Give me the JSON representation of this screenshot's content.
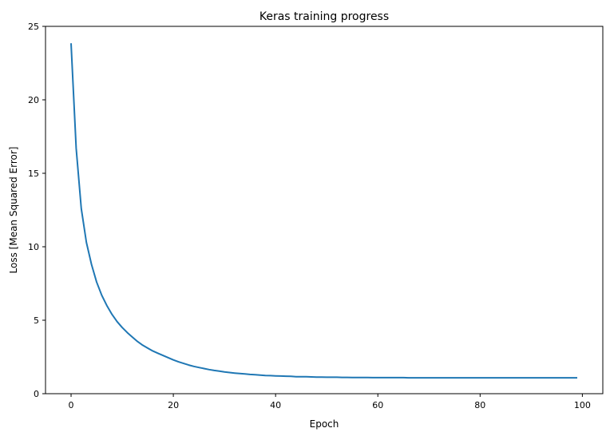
{
  "chart_data": {
    "type": "line",
    "title": "Keras training progress",
    "xlabel": "Epoch",
    "ylabel": "Loss [Mean Squared Error]",
    "xlim": [
      -5,
      104
    ],
    "ylim": [
      0,
      25
    ],
    "xticks": [
      0,
      20,
      40,
      60,
      80,
      100
    ],
    "yticks": [
      0,
      5,
      10,
      15,
      20,
      25
    ],
    "grid": false,
    "series_color": "#1f77b4",
    "series": [
      {
        "values": [
          23.85,
          16.7,
          12.6,
          10.3,
          8.8,
          7.6,
          6.7,
          6.0,
          5.4,
          4.9,
          4.5,
          4.15,
          3.85,
          3.55,
          3.3,
          3.1,
          2.9,
          2.75,
          2.6,
          2.45,
          2.3,
          2.17,
          2.06,
          1.95,
          1.86,
          1.78,
          1.71,
          1.64,
          1.58,
          1.53,
          1.48,
          1.44,
          1.4,
          1.37,
          1.34,
          1.31,
          1.29,
          1.26,
          1.24,
          1.23,
          1.21,
          1.2,
          1.19,
          1.18,
          1.16,
          1.16,
          1.15,
          1.14,
          1.13,
          1.13,
          1.12,
          1.12,
          1.12,
          1.11,
          1.11,
          1.1,
          1.1,
          1.1,
          1.1,
          1.09,
          1.09,
          1.09,
          1.09,
          1.09,
          1.09,
          1.09,
          1.08,
          1.08,
          1.08,
          1.08,
          1.08,
          1.08,
          1.08,
          1.08,
          1.08,
          1.08,
          1.08,
          1.08,
          1.08,
          1.08,
          1.08,
          1.08,
          1.08,
          1.08,
          1.08,
          1.08,
          1.08,
          1.08,
          1.08,
          1.08,
          1.08,
          1.08,
          1.08,
          1.08,
          1.08,
          1.08,
          1.08,
          1.08,
          1.08,
          1.08
        ]
      }
    ]
  }
}
